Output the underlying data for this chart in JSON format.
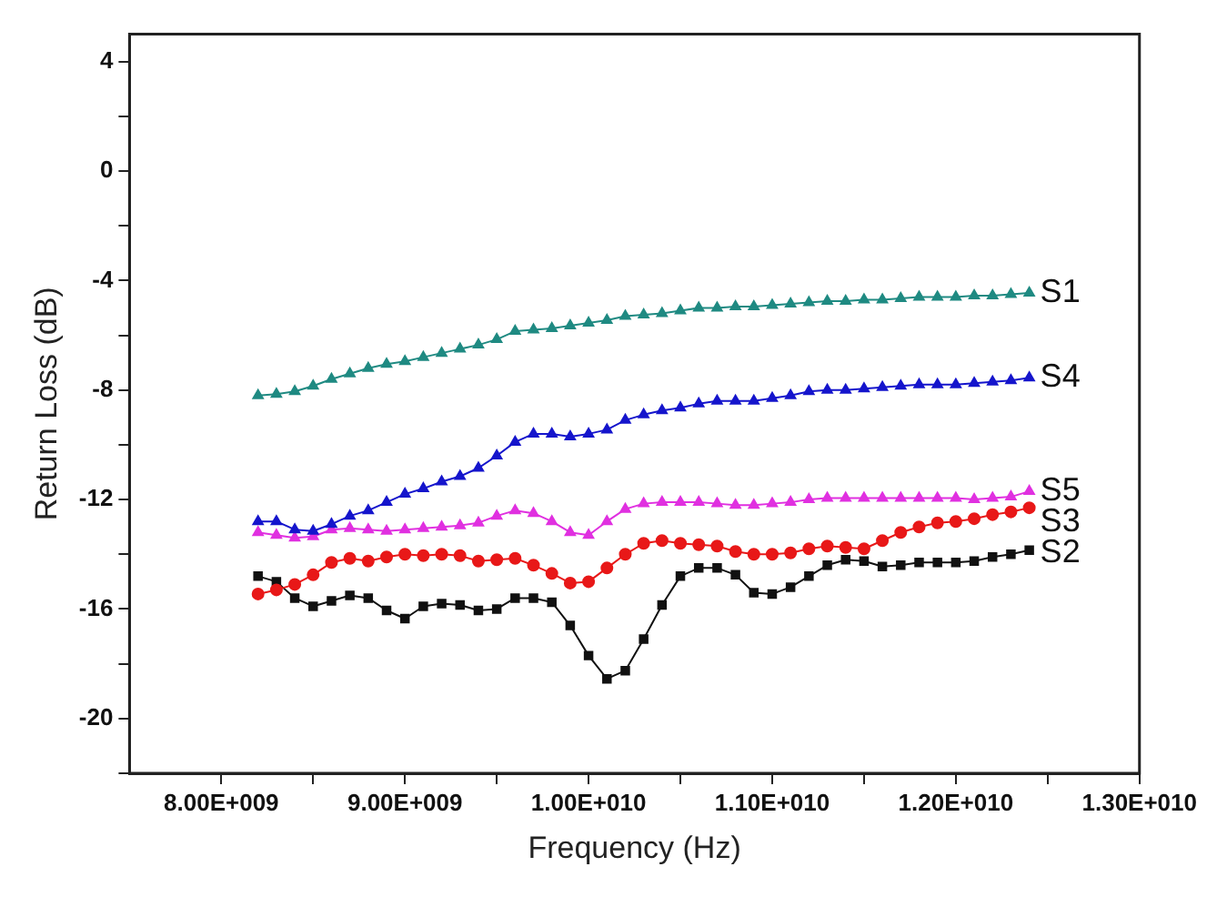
{
  "chart_data": {
    "type": "line",
    "xlabel": "Frequency (Hz)",
    "ylabel": "Return Loss (dB)",
    "x": [
      8200000000,
      8300000000,
      8400000000,
      8500000000,
      8600000000,
      8700000000,
      8800000000,
      8900000000,
      9000000000,
      9100000000,
      9200000000,
      9300000000,
      9400000000,
      9500000000,
      9600000000,
      9700000000,
      9800000000,
      9900000000,
      10000000000,
      10100000000,
      10200000000,
      10300000000,
      10400000000,
      10500000000,
      10600000000,
      10700000000,
      10800000000,
      10900000000,
      11000000000,
      11100000000,
      11200000000,
      11300000000,
      11400000000,
      11500000000,
      11600000000,
      11700000000,
      11800000000,
      11900000000,
      12000000000,
      12100000000,
      12200000000,
      12300000000,
      12400000000
    ],
    "series": [
      {
        "name": "S1",
        "color": "#1f8a82",
        "marker": "triangle",
        "values": [
          -8.2,
          -8.15,
          -8.05,
          -7.85,
          -7.6,
          -7.4,
          -7.2,
          -7.05,
          -6.95,
          -6.8,
          -6.65,
          -6.5,
          -6.35,
          -6.15,
          -5.85,
          -5.8,
          -5.75,
          -5.65,
          -5.55,
          -5.45,
          -5.3,
          -5.25,
          -5.2,
          -5.1,
          -5.0,
          -5.0,
          -4.95,
          -4.95,
          -4.9,
          -4.85,
          -4.8,
          -4.75,
          -4.75,
          -4.7,
          -4.7,
          -4.65,
          -4.6,
          -4.6,
          -4.6,
          -4.55,
          -4.55,
          -4.5,
          -4.45
        ]
      },
      {
        "name": "S4",
        "color": "#1515cc",
        "marker": "triangle",
        "values": [
          -12.8,
          -12.8,
          -13.1,
          -13.15,
          -12.9,
          -12.6,
          -12.4,
          -12.1,
          -11.8,
          -11.6,
          -11.35,
          -11.15,
          -10.85,
          -10.4,
          -9.9,
          -9.6,
          -9.6,
          -9.7,
          -9.6,
          -9.45,
          -9.1,
          -8.9,
          -8.75,
          -8.65,
          -8.5,
          -8.4,
          -8.4,
          -8.4,
          -8.3,
          -8.2,
          -8.05,
          -8.0,
          -8.0,
          -7.95,
          -7.9,
          -7.85,
          -7.8,
          -7.8,
          -7.8,
          -7.75,
          -7.7,
          -7.65,
          -7.55
        ]
      },
      {
        "name": "S5",
        "color": "#e030e0",
        "marker": "triangle",
        "values": [
          -13.2,
          -13.3,
          -13.4,
          -13.35,
          -13.1,
          -13.05,
          -13.1,
          -13.15,
          -13.1,
          -13.05,
          -13.0,
          -12.95,
          -12.85,
          -12.6,
          -12.4,
          -12.5,
          -12.8,
          -13.2,
          -13.3,
          -12.8,
          -12.35,
          -12.15,
          -12.1,
          -12.1,
          -12.1,
          -12.15,
          -12.2,
          -12.2,
          -12.15,
          -12.1,
          -12.0,
          -11.95,
          -11.95,
          -11.95,
          -11.95,
          -11.95,
          -11.95,
          -11.95,
          -11.95,
          -12.0,
          -11.95,
          -11.9,
          -11.7
        ]
      },
      {
        "name": "S3",
        "color": "#e81818",
        "marker": "circle",
        "values": [
          -15.45,
          -15.3,
          -15.1,
          -14.75,
          -14.3,
          -14.15,
          -14.25,
          -14.1,
          -14.0,
          -14.05,
          -14.0,
          -14.05,
          -14.25,
          -14.2,
          -14.15,
          -14.4,
          -14.7,
          -15.05,
          -15.0,
          -14.5,
          -14.0,
          -13.6,
          -13.5,
          -13.6,
          -13.65,
          -13.7,
          -13.9,
          -14.0,
          -14.0,
          -13.95,
          -13.8,
          -13.7,
          -13.75,
          -13.8,
          -13.5,
          -13.2,
          -13.0,
          -12.85,
          -12.8,
          -12.7,
          -12.55,
          -12.45,
          -12.3
        ]
      },
      {
        "name": "S2",
        "color": "#111111",
        "marker": "square",
        "values": [
          -14.8,
          -15.0,
          -15.6,
          -15.9,
          -15.7,
          -15.5,
          -15.6,
          -16.05,
          -16.35,
          -15.9,
          -15.8,
          -15.85,
          -16.05,
          -16.0,
          -15.6,
          -15.6,
          -15.75,
          -16.6,
          -17.7,
          -18.55,
          -18.25,
          -17.1,
          -15.85,
          -14.8,
          -14.5,
          -14.5,
          -14.75,
          -15.4,
          -15.45,
          -15.2,
          -14.8,
          -14.4,
          -14.2,
          -14.25,
          -14.45,
          -14.4,
          -14.3,
          -14.3,
          -14.3,
          -14.25,
          -14.1,
          -14.0,
          -13.85
        ]
      }
    ],
    "xlim": [
      7500000000,
      13000000000
    ],
    "xticks": [
      {
        "value": 8000000000,
        "label": "8.00E+009"
      },
      {
        "value": 8500000000,
        "label": null
      },
      {
        "value": 9000000000,
        "label": "9.00E+009"
      },
      {
        "value": 9500000000,
        "label": null
      },
      {
        "value": 10000000000,
        "label": "1.00E+010"
      },
      {
        "value": 10500000000,
        "label": null
      },
      {
        "value": 11000000000,
        "label": "1.10E+010"
      },
      {
        "value": 11500000000,
        "label": null
      },
      {
        "value": 12000000000,
        "label": "1.20E+010"
      },
      {
        "value": 12500000000,
        "label": null
      },
      {
        "value": 13000000000,
        "label": "1.30E+010"
      }
    ],
    "ylim": [
      -22,
      5
    ],
    "yticks": [
      {
        "value": -22,
        "label": null
      },
      -20,
      {
        "value": -18,
        "label": null
      },
      -16,
      {
        "value": -14,
        "label": null
      },
      -12,
      {
        "value": -10,
        "label": null
      },
      -8,
      {
        "value": -6,
        "label": null
      },
      -4,
      {
        "value": -2,
        "label": null
      },
      0,
      {
        "value": 2,
        "label": null
      },
      4
    ],
    "grid": false,
    "legend": false,
    "line_style": "solid"
  }
}
